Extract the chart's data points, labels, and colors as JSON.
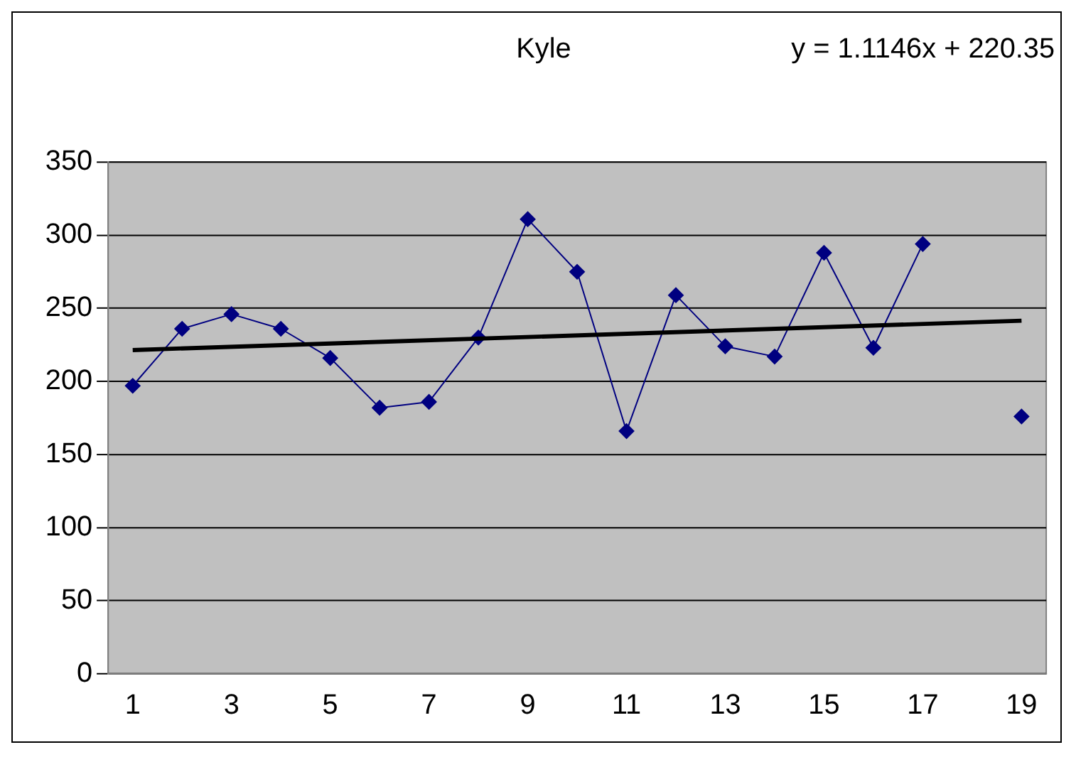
{
  "chart_data": {
    "type": "line",
    "title": "Kyle",
    "annotations": [
      "y = 1.1146x + 220.35"
    ],
    "x": [
      1,
      2,
      3,
      4,
      5,
      6,
      7,
      8,
      9,
      10,
      11,
      12,
      13,
      14,
      15,
      16,
      17,
      18,
      19
    ],
    "series": [
      {
        "color": "#000080",
        "marker": "diamond",
        "values": [
          197,
          236,
          246,
          236,
          216,
          182,
          186,
          230,
          311,
          275,
          166,
          259,
          224,
          217,
          288,
          223,
          294,
          null,
          176
        ]
      },
      {
        "color": "#000000",
        "marker": "none",
        "x": [
          1,
          19
        ],
        "values": [
          221.46,
          241.53
        ]
      }
    ],
    "xlim": [
      0.5,
      19.5
    ],
    "xticks": [
      1,
      3,
      5,
      7,
      9,
      11,
      13,
      15,
      17,
      19
    ],
    "ylim": [
      0,
      350
    ],
    "yticks": [
      0,
      50,
      100,
      150,
      200,
      250,
      300,
      350
    ],
    "grid": "y",
    "legend": false
  }
}
